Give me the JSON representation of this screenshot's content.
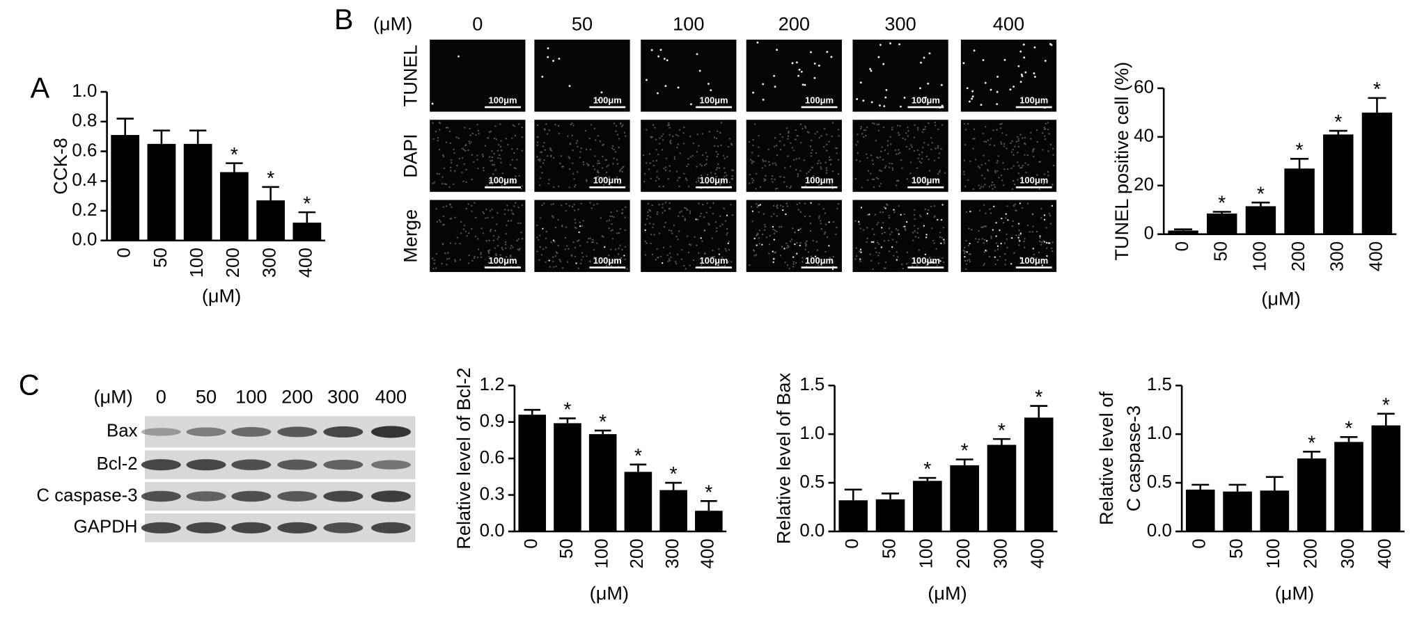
{
  "panel_labels": [
    "A",
    "B",
    "C"
  ],
  "micrographs": {
    "unit": "(μM)",
    "columns": [
      "0",
      "50",
      "100",
      "200",
      "300",
      "400"
    ],
    "rows": [
      "TUNEL",
      "DAPI",
      "Merge"
    ],
    "scale_bar": "100μm"
  },
  "blot": {
    "unit": "(μM)",
    "columns": [
      "0",
      "50",
      "100",
      "200",
      "300",
      "400"
    ],
    "rows": [
      "Bax",
      "Bcl-2",
      "C caspase-3",
      "GAPDH"
    ]
  },
  "chart_data": [
    {
      "type": "bar",
      "ylabel": [
        "CCK-8"
      ],
      "xlabel": "(μM)",
      "categories": [
        "0",
        "50",
        "100",
        "200",
        "300",
        "400"
      ],
      "values": [
        0.71,
        0.65,
        0.65,
        0.46,
        0.27,
        0.12
      ],
      "errors": [
        0.11,
        0.09,
        0.09,
        0.06,
        0.09,
        0.07
      ],
      "annotations": [
        null,
        null,
        null,
        "*",
        "*",
        "*"
      ],
      "color": "#000000",
      "ylim": [
        0,
        1.0
      ],
      "yticks": [
        {
          "value": 0,
          "label": "0.0"
        },
        0.2,
        0.4,
        0.6,
        0.8,
        {
          "value": 1.0,
          "label": "1.0"
        }
      ]
    },
    {
      "type": "bar",
      "ylabel": [
        "TUNEL positive cell (%)"
      ],
      "xlabel": "(μM)",
      "categories": [
        "0",
        "50",
        "100",
        "200",
        "300",
        "400"
      ],
      "values": [
        1.5,
        8.5,
        11.5,
        27,
        41,
        50
      ],
      "errors": [
        0.5,
        0.7,
        1.5,
        4,
        1.5,
        6
      ],
      "annotations": [
        null,
        "*",
        "*",
        "*",
        "*",
        "*"
      ],
      "color": "#000000",
      "ylim": [
        0,
        60
      ],
      "yticks": [
        0,
        20,
        40,
        60
      ]
    },
    {
      "type": "bar",
      "ylabel": [
        "Relative level of Bcl-2"
      ],
      "xlabel": "(μM)",
      "categories": [
        "0",
        "50",
        "100",
        "200",
        "300",
        "400"
      ],
      "values": [
        0.96,
        0.89,
        0.8,
        0.49,
        0.34,
        0.17
      ],
      "errors": [
        0.04,
        0.04,
        0.03,
        0.06,
        0.06,
        0.08
      ],
      "annotations": [
        null,
        "*",
        "*",
        "*",
        "*",
        "*"
      ],
      "color": "#000000",
      "ylim": [
        0,
        1.2
      ],
      "yticks": [
        {
          "value": 0,
          "label": "0.0"
        },
        0.3,
        0.6,
        0.9,
        1.2
      ]
    },
    {
      "type": "bar",
      "ylabel": [
        "Relative level of Bax"
      ],
      "xlabel": "(μM)",
      "categories": [
        "0",
        "50",
        "100",
        "200",
        "300",
        "400"
      ],
      "values": [
        0.32,
        0.33,
        0.52,
        0.68,
        0.89,
        1.17
      ],
      "errors": [
        0.11,
        0.06,
        0.03,
        0.06,
        0.06,
        0.12
      ],
      "annotations": [
        null,
        null,
        "*",
        "*",
        "*",
        "*"
      ],
      "color": "#000000",
      "ylim": [
        0,
        1.5
      ],
      "yticks": [
        {
          "value": 0,
          "label": "0.0"
        },
        0.5,
        {
          "value": 1.0,
          "label": "1.0"
        },
        1.5
      ]
    },
    {
      "type": "bar",
      "ylabel": [
        "Relative level of",
        "C caspase-3"
      ],
      "xlabel": "(μM)",
      "categories": [
        "0",
        "50",
        "100",
        "200",
        "300",
        "400"
      ],
      "values": [
        0.43,
        0.41,
        0.42,
        0.75,
        0.92,
        1.09
      ],
      "errors": [
        0.05,
        0.07,
        0.14,
        0.07,
        0.05,
        0.12
      ],
      "annotations": [
        null,
        null,
        null,
        "*",
        "*",
        "*"
      ],
      "color": "#000000",
      "ylim": [
        0,
        1.5
      ],
      "yticks": [
        {
          "value": 0,
          "label": "0.0"
        },
        0.5,
        {
          "value": 1.0,
          "label": "1.0"
        },
        1.5
      ]
    }
  ]
}
